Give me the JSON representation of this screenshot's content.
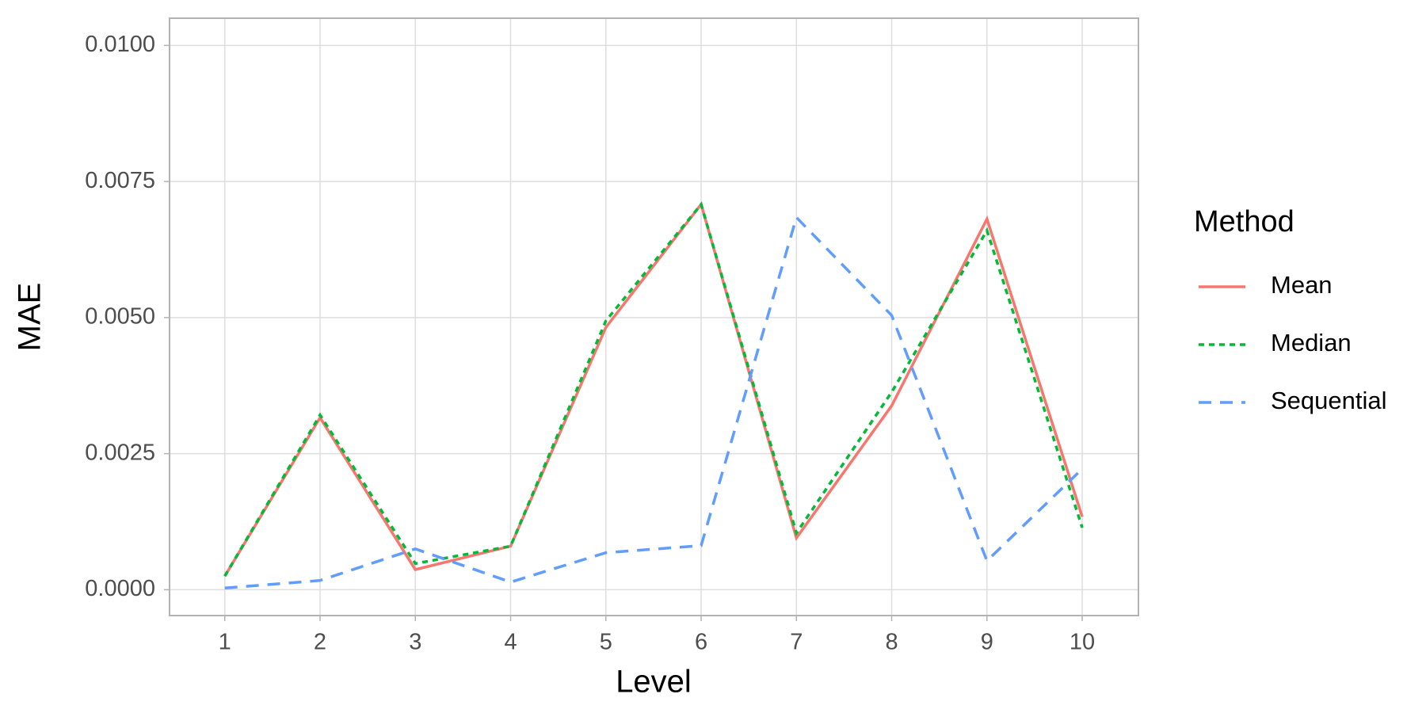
{
  "chart_data": {
    "type": "line",
    "x_label": "Level",
    "y_label": "MAE",
    "x": [
      1,
      2,
      3,
      4,
      5,
      6,
      7,
      8,
      9,
      10
    ],
    "series": [
      {
        "name": "Mean",
        "color": "#F8766D",
        "linestyle": "solid",
        "values": [
          0.00025,
          0.00316,
          0.00037,
          0.0008,
          0.00482,
          0.00708,
          0.00095,
          0.00338,
          0.00681,
          0.00134
        ]
      },
      {
        "name": "Median",
        "color": "#00BA38",
        "linestyle": "dotted",
        "values": [
          0.00025,
          0.00321,
          0.00048,
          0.0008,
          0.00494,
          0.00708,
          0.00104,
          0.00363,
          0.0066,
          0.00114
        ]
      },
      {
        "name": "Sequential",
        "color": "#619CFF",
        "linestyle": "dashed",
        "values": [
          3e-05,
          0.00017,
          0.00075,
          0.00014,
          0.00068,
          0.00081,
          0.00684,
          0.00504,
          0.00053,
          0.00222
        ]
      }
    ],
    "legend_title": "Method",
    "legend_position": "right",
    "xlim": [
      0.42,
      10.59
    ],
    "ylim": [
      -0.000475,
      0.0105
    ],
    "xticks": [
      1,
      2,
      3,
      4,
      5,
      6,
      7,
      8,
      9,
      10
    ],
    "yticks": [
      {
        "value": 0,
        "label": "0.0000"
      },
      {
        "value": 0.0025,
        "label": "0.0025"
      },
      {
        "value": 0.005,
        "label": "0.0050"
      },
      {
        "value": 0.0075,
        "label": "0.0075"
      },
      {
        "value": 0.01,
        "label": "0.0100"
      }
    ],
    "grid": true
  }
}
